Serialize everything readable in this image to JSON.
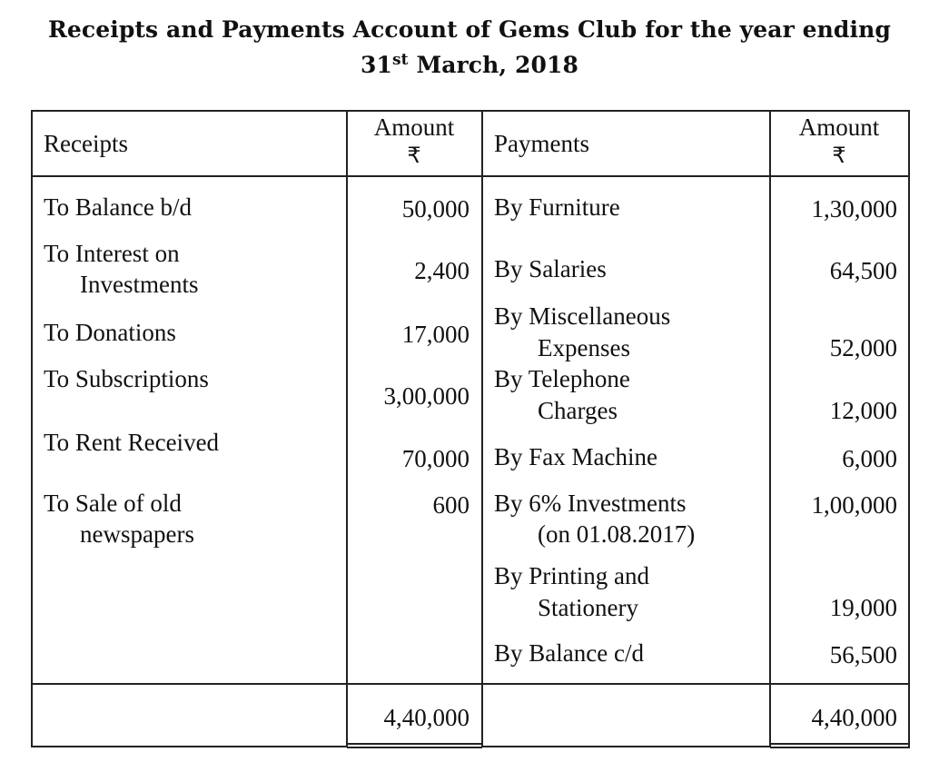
{
  "title": {
    "line1": "Receipts and Payments Account of Gems Club for the year ending",
    "day": "31",
    "day_suffix": "st",
    "month_year": "March, 2018"
  },
  "headers": {
    "receipts": "Receipts",
    "amount_label": "Amount",
    "currency": "₹",
    "payments": "Payments"
  },
  "receipts": [
    {
      "line1": "To Balance b/d",
      "line2": "",
      "amount": "50,000"
    },
    {
      "line1": "To Interest on",
      "line2": "Investments",
      "amount": "2,400"
    },
    {
      "line1": "To Donations",
      "line2": "",
      "amount": "17,000"
    },
    {
      "line1": "To Subscriptions",
      "line2": "",
      "amount": "3,00,000"
    },
    {
      "line1": "To Rent Received",
      "line2": "",
      "amount": "70,000"
    },
    {
      "line1": "To Sale of old",
      "line2": "newspapers",
      "amount": "600"
    }
  ],
  "payments": [
    {
      "line1": "By Furniture",
      "line2": "",
      "amount": "1,30,000"
    },
    {
      "line1": "By Salaries",
      "line2": "",
      "amount": "64,500"
    },
    {
      "line1": "By Miscellaneous",
      "line2": "Expenses",
      "amount": "52,000"
    },
    {
      "line1": "By Telephone",
      "line2": "Charges",
      "amount": "12,000"
    },
    {
      "line1": "By Fax Machine",
      "line2": "",
      "amount": "6,000"
    },
    {
      "line1": "By 6% Investments",
      "line2": "(on 01.08.2017)",
      "amount": "1,00,000"
    },
    {
      "line1": "By Printing and",
      "line2": "Stationery",
      "amount": "19,000"
    },
    {
      "line1": "By Balance c/d",
      "line2": "",
      "amount": "56,500"
    }
  ],
  "totals": {
    "receipts": "4,40,000",
    "payments": "4,40,000"
  }
}
